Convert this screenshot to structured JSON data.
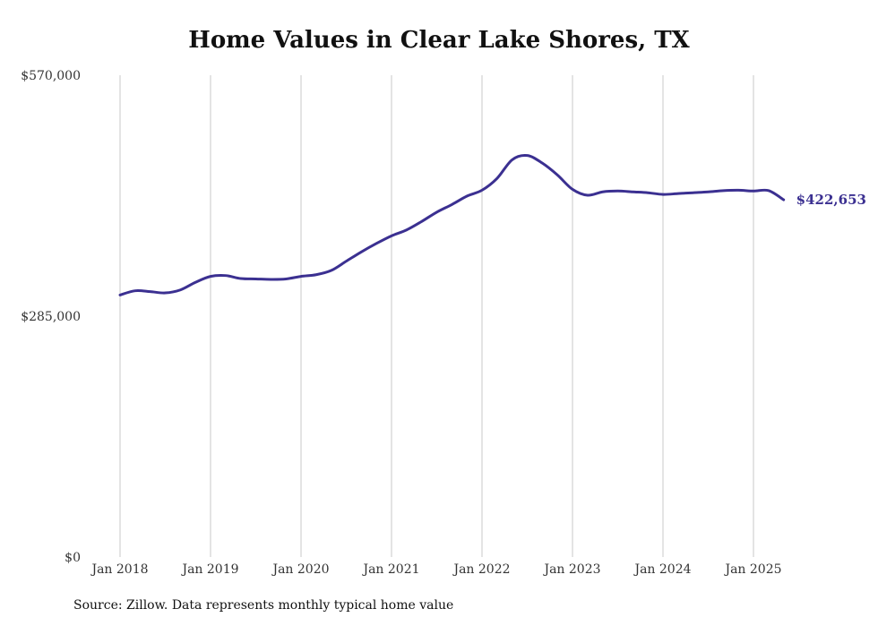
{
  "chart_data": {
    "type": "line",
    "title": "Home Values in Clear Lake Shores, TX",
    "xlabel": "",
    "ylabel": "",
    "y_ticks": [
      "$0",
      "$285,000",
      "$570,000"
    ],
    "x_ticks": [
      "Jan 2018",
      "Jan 2019",
      "Jan 2020",
      "Jan 2021",
      "Jan 2022",
      "Jan 2023",
      "Jan 2024",
      "Jan 2025"
    ],
    "ylim": [
      0,
      570000
    ],
    "x_range": [
      "2018-01",
      "2025-05"
    ],
    "grid": "vertical",
    "series": [
      {
        "color": "#3b3091",
        "x": [
          "2018-01",
          "2018-03",
          "2018-05",
          "2018-07",
          "2018-09",
          "2018-11",
          "2019-01",
          "2019-03",
          "2019-05",
          "2019-07",
          "2019-09",
          "2019-11",
          "2020-01",
          "2020-03",
          "2020-05",
          "2020-07",
          "2020-09",
          "2020-11",
          "2021-01",
          "2021-03",
          "2021-05",
          "2021-07",
          "2021-09",
          "2021-11",
          "2022-01",
          "2022-03",
          "2022-05",
          "2022-07",
          "2022-09",
          "2022-11",
          "2023-01",
          "2023-03",
          "2023-05",
          "2023-07",
          "2023-09",
          "2023-11",
          "2024-01",
          "2024-03",
          "2024-05",
          "2024-07",
          "2024-09",
          "2024-11",
          "2025-01",
          "2025-03",
          "2025-05"
        ],
        "values": [
          310000,
          315000,
          314000,
          312500,
          316000,
          325000,
          332000,
          333000,
          329500,
          329000,
          328500,
          329000,
          332000,
          334000,
          339000,
          350000,
          361000,
          371000,
          380000,
          387000,
          397000,
          408000,
          417000,
          427000,
          434000,
          448000,
          470000,
          475000,
          466000,
          452000,
          435000,
          428000,
          432000,
          433000,
          432000,
          431000,
          429000,
          430000,
          431000,
          432000,
          433500,
          434000,
          433000,
          433500,
          422653
        ]
      }
    ],
    "end_label": "$422,653",
    "source": "Source: Zillow. Data represents monthly typical home value"
  },
  "colors": {
    "line": "#3b3091",
    "grid": "#c8c8c8",
    "end_label": "#3b3091"
  }
}
